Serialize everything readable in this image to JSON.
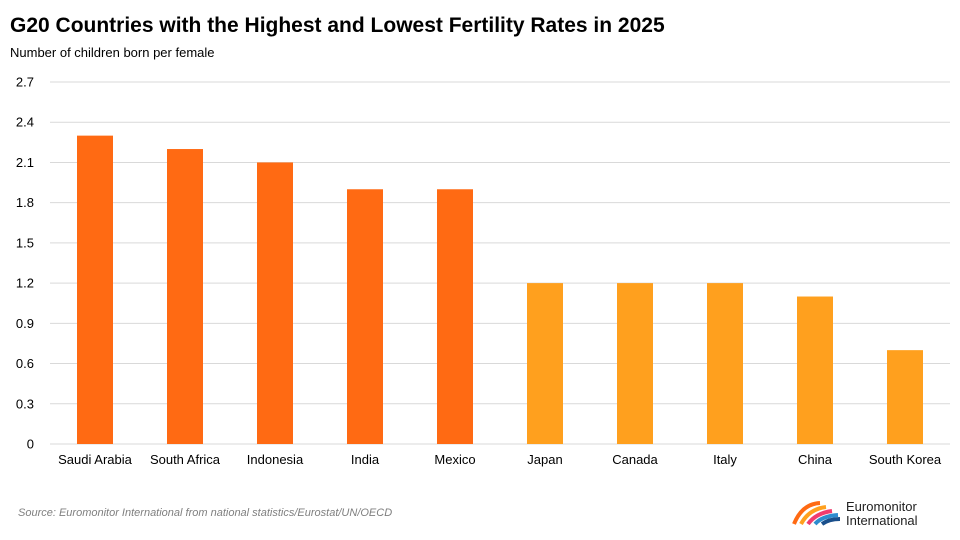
{
  "chart_data": {
    "type": "bar",
    "title": "G20 Countries with the Highest and Lowest Fertility Rates in 2025",
    "subtitle": "Number of children born per female",
    "categories": [
      "Saudi Arabia",
      "South Africa",
      "Indonesia",
      "India",
      "Mexico",
      "Japan",
      "Canada",
      "Italy",
      "China",
      "South Korea"
    ],
    "values": [
      2.3,
      2.2,
      2.1,
      1.9,
      1.9,
      1.2,
      1.2,
      1.2,
      1.1,
      0.7
    ],
    "bar_colors": [
      "#ff6a13",
      "#ff6a13",
      "#ff6a13",
      "#ff6a13",
      "#ff6a13",
      "#ffa01e",
      "#ffa01e",
      "#ffa01e",
      "#ffa01e",
      "#ffa01e"
    ],
    "yticks": [
      "0",
      "0.3",
      "0.6",
      "0.9",
      "1.2",
      "1.5",
      "1.8",
      "2.1",
      "2.4",
      "2.7"
    ],
    "ylim": [
      0,
      2.7
    ],
    "grid": true,
    "xlabel": "",
    "ylabel": ""
  },
  "colors": {
    "highest": "#ff6a13",
    "lowest": "#ffa01e",
    "grid": "#d9d9d9",
    "source": "#7f7f7f"
  },
  "source": "Source: Euromonitor International from national statistics/Eurostat/UN/OECD",
  "brand": {
    "line1": "Euromonitor",
    "line2": "International"
  }
}
